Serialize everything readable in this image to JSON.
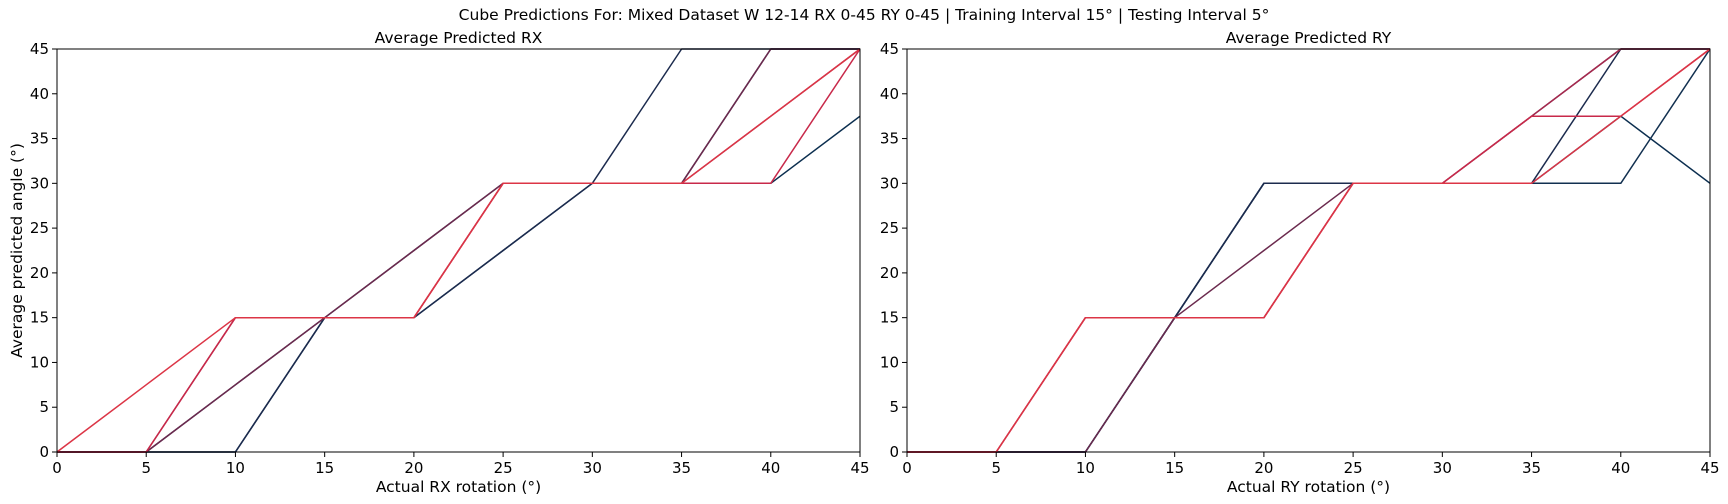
{
  "figure_title": "Cube Predictions For: Mixed Dataset W 12-14 RX 0-45 RY 0-45 | Training Interval 15° | Testing Interval 5°",
  "chart_data": [
    {
      "type": "line",
      "title": "Average Predicted RX",
      "xlabel": "Actual RX rotation (°)",
      "ylabel": "Average predicted angle (°)",
      "xlim": [
        0,
        45
      ],
      "ylim": [
        0,
        45
      ],
      "xticks": [
        0,
        5,
        10,
        15,
        20,
        25,
        30,
        35,
        40,
        45
      ],
      "yticks": [
        0,
        5,
        10,
        15,
        20,
        25,
        30,
        35,
        40,
        45
      ],
      "grid": false,
      "x": [
        0,
        5,
        10,
        15,
        20,
        25,
        30,
        35,
        40,
        45
      ],
      "series": [
        {
          "color": "#0b2e4f",
          "values": [
            0,
            0,
            0,
            15,
            15,
            22.5,
            30,
            30,
            30,
            37.5
          ]
        },
        {
          "color": "#1c2b4e",
          "values": [
            0,
            0,
            0,
            15,
            15,
            22.5,
            30,
            45,
            45,
            45
          ]
        },
        {
          "color": "#3a2a4e",
          "values": [
            0,
            0,
            7.5,
            15,
            22.5,
            30,
            30,
            30,
            45,
            45
          ]
        },
        {
          "color": "#6b2a4e",
          "values": [
            0,
            0,
            7.5,
            15,
            22.5,
            30,
            30,
            30,
            45,
            45
          ]
        },
        {
          "color": "#a6294e",
          "values": [
            0,
            0,
            15,
            15,
            15,
            30,
            30,
            30,
            37.5,
            45
          ]
        },
        {
          "color": "#c8294a",
          "values": [
            0,
            0,
            15,
            15,
            15,
            30,
            30,
            30,
            30,
            45
          ]
        },
        {
          "color": "#dc3546",
          "values": [
            0,
            7.5,
            15,
            15,
            15,
            30,
            30,
            30,
            37.5,
            45
          ]
        }
      ]
    },
    {
      "type": "line",
      "title": "Average Predicted RY",
      "xlabel": "Actual RY rotation (°)",
      "ylabel": "",
      "xlim": [
        0,
        45
      ],
      "ylim": [
        0,
        45
      ],
      "xticks": [
        0,
        5,
        10,
        15,
        20,
        25,
        30,
        35,
        40,
        45
      ],
      "yticks": [
        0,
        5,
        10,
        15,
        20,
        25,
        30,
        35,
        40,
        45
      ],
      "grid": false,
      "x": [
        0,
        5,
        10,
        15,
        20,
        25,
        30,
        35,
        40,
        45
      ],
      "series": [
        {
          "color": "#0b2e4f",
          "values": [
            0,
            0,
            0,
            15,
            30,
            30,
            30,
            30,
            37.5,
            30
          ]
        },
        {
          "color": "#123050",
          "values": [
            0,
            0,
            0,
            15,
            30,
            30,
            30,
            30,
            30,
            45
          ]
        },
        {
          "color": "#1c2b4e",
          "values": [
            0,
            0,
            0,
            15,
            30,
            30,
            30,
            30,
            45,
            45
          ]
        },
        {
          "color": "#6b2a4e",
          "values": [
            0,
            0,
            0,
            15,
            22.5,
            30,
            30,
            37.5,
            45,
            45
          ]
        },
        {
          "color": "#a6294e",
          "values": [
            0,
            0,
            15,
            15,
            15,
            30,
            30,
            37.5,
            45,
            45
          ]
        },
        {
          "color": "#c8294a",
          "values": [
            0,
            0,
            15,
            15,
            15,
            30,
            30,
            37.5,
            37.5,
            45
          ]
        },
        {
          "color": "#dc3546",
          "values": [
            0,
            0,
            15,
            15,
            15,
            30,
            30,
            30,
            37.5,
            45
          ]
        }
      ]
    }
  ]
}
